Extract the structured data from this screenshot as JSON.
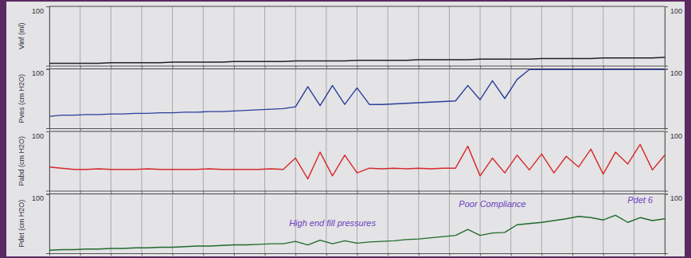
{
  "chart_data": [
    {
      "type": "line",
      "ylabel": "Vinf (ml)",
      "color": "#222222",
      "x": [
        0,
        2,
        4,
        6,
        8,
        10,
        12,
        14,
        16,
        18,
        20,
        22,
        24,
        26,
        28,
        30,
        32,
        34,
        36,
        38,
        40,
        42,
        44,
        46,
        48,
        50,
        52,
        54,
        56,
        58,
        60,
        62,
        64,
        66,
        68,
        70,
        72,
        74,
        76,
        78,
        80,
        82,
        84,
        86,
        88,
        90,
        92,
        94,
        96,
        98,
        100
      ],
      "values": [
        4,
        4,
        4,
        4,
        4,
        5,
        5,
        5,
        5,
        5,
        6,
        6,
        6,
        6,
        6,
        7,
        7,
        7,
        7,
        7,
        8,
        8,
        8,
        8,
        8,
        9,
        9,
        9,
        9,
        9,
        10,
        10,
        10,
        10,
        10,
        11,
        11,
        11,
        11,
        11,
        12,
        12,
        12,
        12,
        12,
        13,
        13,
        13,
        13,
        13,
        14
      ],
      "xlim": [
        0,
        100
      ],
      "xticks": [
        0,
        5,
        10,
        15,
        20,
        25,
        30,
        35,
        40,
        45,
        50,
        55,
        60,
        65,
        70,
        75,
        80,
        85,
        90,
        95,
        100
      ],
      "ylim": [
        0,
        100
      ],
      "yticks": [
        100
      ],
      "grid": true,
      "tick_labels": "y"
    },
    {
      "type": "line",
      "ylabel": "Pves (cm H2O)",
      "color": "#2a3f9a",
      "x": [
        0,
        2,
        4,
        6,
        8,
        10,
        12,
        14,
        16,
        18,
        20,
        22,
        24,
        26,
        28,
        30,
        32,
        34,
        36,
        38,
        40,
        42,
        44,
        46,
        48,
        50,
        52,
        54,
        56,
        58,
        60,
        62,
        64,
        66,
        68,
        70,
        72,
        74,
        76,
        78,
        80,
        82,
        84,
        86,
        88,
        90,
        92,
        94,
        96,
        98,
        100
      ],
      "values": [
        20,
        22,
        22,
        23,
        23,
        24,
        24,
        25,
        25,
        26,
        26,
        27,
        27,
        28,
        28,
        29,
        30,
        31,
        32,
        33,
        36,
        70,
        38,
        72,
        40,
        68,
        40,
        40,
        41,
        42,
        43,
        44,
        45,
        46,
        72,
        48,
        80,
        50,
        82,
        99,
        99,
        99,
        99,
        99,
        99,
        99,
        99,
        99,
        99,
        99,
        99
      ],
      "xlim": [
        0,
        100
      ],
      "xticks": [
        0,
        5,
        10,
        15,
        20,
        25,
        30,
        35,
        40,
        45,
        50,
        55,
        60,
        65,
        70,
        75,
        80,
        85,
        90,
        95,
        100
      ],
      "ylim": [
        0,
        100
      ],
      "yticks": [
        100
      ],
      "grid": true,
      "tick_labels": "y"
    },
    {
      "type": "line",
      "ylabel": "Pabd (cm H2O)",
      "color": "#d42a2a",
      "x": [
        0,
        2,
        4,
        6,
        8,
        10,
        12,
        14,
        16,
        18,
        20,
        22,
        24,
        26,
        28,
        30,
        32,
        34,
        36,
        38,
        40,
        42,
        44,
        46,
        48,
        50,
        52,
        54,
        56,
        58,
        60,
        62,
        64,
        66,
        68,
        70,
        72,
        74,
        76,
        78,
        80,
        82,
        84,
        86,
        88,
        90,
        92,
        94,
        96,
        98,
        100
      ],
      "values": [
        40,
        38,
        36,
        36,
        37,
        36,
        36,
        36,
        37,
        36,
        36,
        36,
        36,
        37,
        36,
        36,
        36,
        36,
        37,
        36,
        55,
        20,
        65,
        25,
        60,
        30,
        38,
        37,
        38,
        37,
        38,
        37,
        38,
        38,
        75,
        25,
        55,
        30,
        60,
        35,
        62,
        30,
        58,
        40,
        70,
        28,
        65,
        45,
        78,
        35,
        60
      ],
      "xlim": [
        0,
        100
      ],
      "xticks": [
        0,
        5,
        10,
        15,
        20,
        25,
        30,
        35,
        40,
        45,
        50,
        55,
        60,
        65,
        70,
        75,
        80,
        85,
        90,
        95,
        100
      ],
      "ylim": [
        0,
        100
      ],
      "yticks": [
        100
      ],
      "grid": true,
      "tick_labels": "y"
    },
    {
      "type": "line",
      "ylabel": "Pdet (cm H2O)",
      "color": "#1f6b2a",
      "x": [
        0,
        2,
        4,
        6,
        8,
        10,
        12,
        14,
        16,
        18,
        20,
        22,
        24,
        26,
        28,
        30,
        32,
        34,
        36,
        38,
        40,
        42,
        44,
        46,
        48,
        50,
        52,
        54,
        56,
        58,
        60,
        62,
        64,
        66,
        68,
        70,
        72,
        74,
        76,
        78,
        80,
        82,
        84,
        86,
        88,
        90,
        92,
        94,
        96,
        98,
        100
      ],
      "values": [
        5,
        6,
        6,
        7,
        7,
        8,
        8,
        9,
        9,
        10,
        10,
        11,
        12,
        12,
        13,
        14,
        14,
        15,
        16,
        16,
        20,
        14,
        22,
        16,
        21,
        17,
        19,
        20,
        21,
        23,
        24,
        26,
        28,
        30,
        40,
        30,
        34,
        35,
        48,
        50,
        52,
        55,
        58,
        62,
        60,
        56,
        64,
        52,
        60,
        55,
        58
      ],
      "xlim": [
        0,
        100
      ],
      "xticks": [
        0,
        5,
        10,
        15,
        20,
        25,
        30,
        35,
        40,
        45,
        50,
        55,
        60,
        65,
        70,
        75,
        80,
        85,
        90,
        95,
        100
      ],
      "ylim": [
        0,
        100
      ],
      "yticks": [
        100
      ],
      "grid": true,
      "tick_labels": "y",
      "annotations": [
        {
          "text": "High end fill pressures",
          "x": 46,
          "y": 45
        },
        {
          "text": "Poor Compliance",
          "x": 72,
          "y": 78
        },
        {
          "text": "Pdet 6",
          "x": 96,
          "y": 85
        }
      ]
    }
  ]
}
